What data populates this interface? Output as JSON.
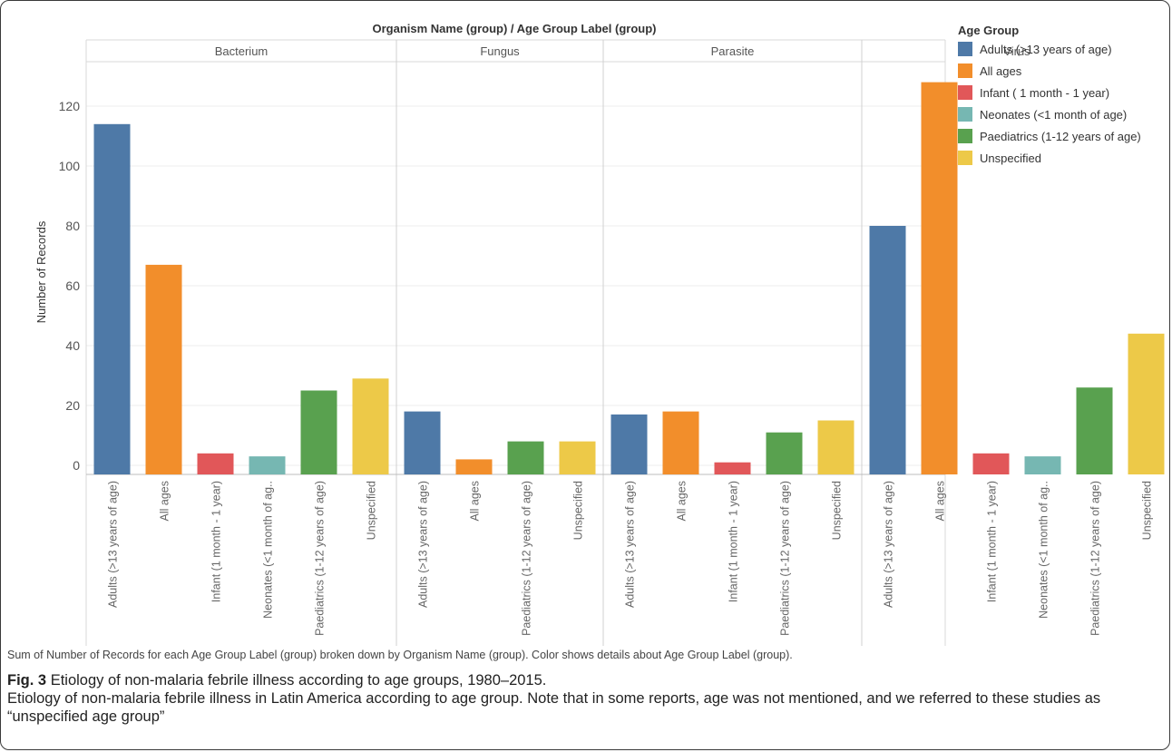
{
  "chart_data": {
    "type": "bar",
    "header": "Organism Name (group) / Age Group Label (group)",
    "ylabel": "Number of Records",
    "ylim": [
      0,
      130
    ],
    "yticks": [
      0,
      20,
      40,
      60,
      80,
      100,
      120
    ],
    "grid": true,
    "legend_title": "Age Group",
    "legend_position": "right",
    "legend": [
      {
        "label": "Adults (>13 years of age)",
        "color": "#4e79a7"
      },
      {
        "label": "All ages",
        "color": "#f28e2b"
      },
      {
        "label": "Infant ( 1 month - 1 year)",
        "color": "#e15759"
      },
      {
        "label": "Neonates (<1 month of age)",
        "color": "#76b7b2"
      },
      {
        "label": "Paediatrics (1-12 years of age)",
        "color": "#59a14f"
      },
      {
        "label": "Unspecified",
        "color": "#edc948"
      }
    ],
    "panels": [
      {
        "name": "Bacterium",
        "bars": [
          {
            "label": "Adults (>13 years of age)",
            "value": 114,
            "color": "#4e79a7"
          },
          {
            "label": "All ages",
            "value": 67,
            "color": "#f28e2b"
          },
          {
            "label": "Infant (1 month - 1 year)",
            "value": 4,
            "color": "#e15759"
          },
          {
            "label": "Neonates (<1 month of ag..",
            "value": 3,
            "color": "#76b7b2"
          },
          {
            "label": "Paediatrics (1-12 years of age)",
            "value": 25,
            "color": "#59a14f"
          },
          {
            "label": "Unspecified",
            "value": 29,
            "color": "#edc948"
          }
        ]
      },
      {
        "name": "Fungus",
        "bars": [
          {
            "label": "Adults (>13 years of age)",
            "value": 18,
            "color": "#4e79a7"
          },
          {
            "label": "All ages",
            "value": 2,
            "color": "#f28e2b"
          },
          {
            "label": "Paediatrics (1-12 years of age)",
            "value": 8,
            "color": "#59a14f"
          },
          {
            "label": "Unspecified",
            "value": 8,
            "color": "#edc948"
          }
        ]
      },
      {
        "name": "Parasite",
        "bars": [
          {
            "label": "Adults (>13 years of age)",
            "value": 17,
            "color": "#4e79a7"
          },
          {
            "label": "All ages",
            "value": 18,
            "color": "#f28e2b"
          },
          {
            "label": "Infant (1 month - 1 year)",
            "value": 1,
            "color": "#e15759"
          },
          {
            "label": "Paediatrics (1-12 years of age)",
            "value": 11,
            "color": "#59a14f"
          },
          {
            "label": "Unspecified",
            "value": 15,
            "color": "#edc948"
          }
        ]
      },
      {
        "name": "Virus",
        "bars": [
          {
            "label": "Adults (>13 years of age)",
            "value": 80,
            "color": "#4e79a7"
          },
          {
            "label": "All ages",
            "value": 128,
            "color": "#f28e2b"
          },
          {
            "label": "Infant (1 month - 1 year)",
            "value": 4,
            "color": "#e15759"
          },
          {
            "label": "Neonates (<1 month of ag..",
            "value": 3,
            "color": "#76b7b2"
          },
          {
            "label": "Paediatrics (1-12 years of age)",
            "value": 26,
            "color": "#59a14f"
          },
          {
            "label": "Unspecified",
            "value": 44,
            "color": "#edc948"
          }
        ]
      }
    ]
  },
  "footnote": "Sum of Number of Records for each Age Group Label (group) broken down by Organism Name (group).  Color shows details about Age Group Label (group).",
  "caption": {
    "label": "Fig. 3",
    "title": "Etiology of non-malaria febrile illness according to age groups, 1980–2015.",
    "body": "Etiology of non-malaria febrile illness in Latin America according to age group. Note that in some reports, age was not mentioned, and we referred to these studies as “unspecified age group”"
  }
}
